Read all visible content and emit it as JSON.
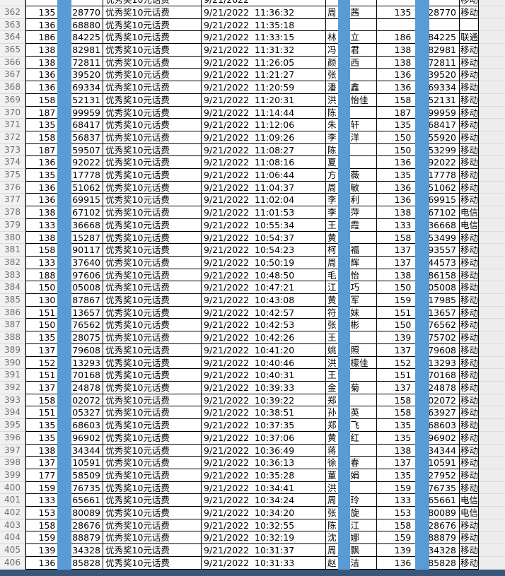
{
  "sheet": {
    "prize_label": "优秀奖10元话费",
    "date": "9/21/2022"
  },
  "colors": {
    "redaction_bar": "#5b9bd5",
    "page_break_bar": "#38587b",
    "row_header_bg": "#f1f1f1",
    "outside_area_bg": "#ededed"
  },
  "carriers_seen": [
    "移动",
    "联通",
    "电信"
  ],
  "rows": [
    {
      "row": "",
      "partial": true,
      "phone_a_prefix": "",
      "phone_a_suffix": "",
      "time": "",
      "name_first": "",
      "name_rest": "",
      "phone_b_prefix": "",
      "phone_b_suffix": "",
      "carrier": "移动"
    },
    {
      "row": "362",
      "phone_a_prefix": "135",
      "phone_a_suffix": "28770",
      "time": "11:36:32",
      "name_first": "周",
      "name_rest": "茜",
      "phone_b_prefix": "135",
      "phone_b_suffix": "28770",
      "carrier": "移动"
    },
    {
      "row": "363",
      "phone_a_prefix": "136",
      "phone_a_suffix": "68880",
      "time": "11:35:18",
      "name_first": "",
      "name_rest": "",
      "phone_b_prefix": "",
      "phone_b_suffix": "",
      "carrier": ""
    },
    {
      "row": "364",
      "phone_a_prefix": "186",
      "phone_a_suffix": "84225",
      "time": "11:33:15",
      "name_first": "林",
      "name_rest": "立",
      "phone_b_prefix": "186",
      "phone_b_suffix": "84225",
      "carrier": "联通"
    },
    {
      "row": "365",
      "phone_a_prefix": "138",
      "phone_a_suffix": "82981",
      "time": "11:31:32",
      "name_first": "冯",
      "name_rest": "君",
      "phone_b_prefix": "138",
      "phone_b_suffix": "82981",
      "carrier": "移动"
    },
    {
      "row": "366",
      "phone_a_prefix": "138",
      "phone_a_suffix": "72811",
      "time": "11:26:05",
      "name_first": "颜",
      "name_rest": "西",
      "phone_b_prefix": "138",
      "phone_b_suffix": "72811",
      "carrier": "移动"
    },
    {
      "row": "367",
      "phone_a_prefix": "136",
      "phone_a_suffix": "39520",
      "time": "11:21:27",
      "name_first": "张",
      "name_rest": "",
      "phone_b_prefix": "136",
      "phone_b_suffix": "39520",
      "carrier": "移动"
    },
    {
      "row": "368",
      "phone_a_prefix": "136",
      "phone_a_suffix": "69334",
      "time": "11:20:59",
      "name_first": "潘",
      "name_rest": "鑫",
      "phone_b_prefix": "136",
      "phone_b_suffix": "69334",
      "carrier": "移动"
    },
    {
      "row": "369",
      "phone_a_prefix": "158",
      "phone_a_suffix": "52131",
      "time": "11:20:31",
      "name_first": "洪",
      "name_rest": "怡佳",
      "phone_b_prefix": "158",
      "phone_b_suffix": "52131",
      "carrier": "移动"
    },
    {
      "row": "370",
      "phone_a_prefix": "187",
      "phone_a_suffix": "99959",
      "time": "11:14:44",
      "name_first": "陈",
      "name_rest": "",
      "phone_b_prefix": "187",
      "phone_b_suffix": "99959",
      "carrier": "移动"
    },
    {
      "row": "371",
      "phone_a_prefix": "135",
      "phone_a_suffix": "68417",
      "time": "11:12:06",
      "name_first": "朱",
      "name_rest": "轩",
      "phone_b_prefix": "135",
      "phone_b_suffix": "68417",
      "carrier": "移动"
    },
    {
      "row": "372",
      "phone_a_prefix": "158",
      "phone_a_suffix": "56837",
      "time": "11:09:26",
      "name_first": "李",
      "name_rest": "洋",
      "phone_b_prefix": "150",
      "phone_b_suffix": "55920",
      "carrier": "移动"
    },
    {
      "row": "373",
      "phone_a_prefix": "187",
      "phone_a_suffix": "59507",
      "time": "11:08:27",
      "name_first": "陈",
      "name_rest": "",
      "phone_b_prefix": "150",
      "phone_b_suffix": "53299",
      "carrier": "移动"
    },
    {
      "row": "374",
      "phone_a_prefix": "136",
      "phone_a_suffix": "92022",
      "time": "11:08:16",
      "name_first": "夏",
      "name_rest": "",
      "phone_b_prefix": "136",
      "phone_b_suffix": "92022",
      "carrier": "移动"
    },
    {
      "row": "375",
      "phone_a_prefix": "135",
      "phone_a_suffix": "17778",
      "time": "11:06:44",
      "name_first": "方",
      "name_rest": "薇",
      "phone_b_prefix": "135",
      "phone_b_suffix": "17778",
      "carrier": "移动"
    },
    {
      "row": "376",
      "phone_a_prefix": "136",
      "phone_a_suffix": "51062",
      "time": "11:04:37",
      "name_first": "周",
      "name_rest": "敏",
      "phone_b_prefix": "136",
      "phone_b_suffix": "51062",
      "carrier": "移动"
    },
    {
      "row": "377",
      "phone_a_prefix": "136",
      "phone_a_suffix": "69915",
      "time": "11:02:04",
      "name_first": "李",
      "name_rest": "利",
      "phone_b_prefix": "136",
      "phone_b_suffix": "69915",
      "carrier": "移动"
    },
    {
      "row": "378",
      "phone_a_prefix": "138",
      "phone_a_suffix": "67102",
      "time": "11:01:53",
      "name_first": "李",
      "name_rest": "萍",
      "phone_b_prefix": "138",
      "phone_b_suffix": "67102",
      "carrier": "电信"
    },
    {
      "row": "379",
      "phone_a_prefix": "133",
      "phone_a_suffix": "36668",
      "time": "10:55:34",
      "name_first": "王",
      "name_rest": "霞",
      "phone_b_prefix": "133",
      "phone_b_suffix": "36668",
      "carrier": "电信"
    },
    {
      "row": "380",
      "phone_a_prefix": "138",
      "phone_a_suffix": "15287",
      "time": "10:54:37",
      "name_first": "黄",
      "name_rest": "",
      "phone_b_prefix": "158",
      "phone_b_suffix": "53499",
      "carrier": "移动"
    },
    {
      "row": "381",
      "phone_a_prefix": "158",
      "phone_a_suffix": "90117",
      "time": "10:54:23",
      "name_first": "柯",
      "name_rest": "福",
      "phone_b_prefix": "137",
      "phone_b_suffix": "93557",
      "carrier": "移动"
    },
    {
      "row": "382",
      "phone_a_prefix": "133",
      "phone_a_suffix": "37640",
      "time": "10:50:19",
      "name_first": "周",
      "name_rest": "辉",
      "phone_b_prefix": "137",
      "phone_b_suffix": "44573",
      "carrier": "移动"
    },
    {
      "row": "383",
      "phone_a_prefix": "188",
      "phone_a_suffix": "97606",
      "time": "10:48:50",
      "name_first": "毛",
      "name_rest": "怡",
      "phone_b_prefix": "138",
      "phone_b_suffix": "86158",
      "carrier": "移动"
    },
    {
      "row": "384",
      "phone_a_prefix": "150",
      "phone_a_suffix": "05008",
      "time": "10:47:21",
      "name_first": "江",
      "name_rest": "巧",
      "phone_b_prefix": "150",
      "phone_b_suffix": "05008",
      "carrier": "移动"
    },
    {
      "row": "385",
      "phone_a_prefix": "130",
      "phone_a_suffix": "87867",
      "time": "10:43:08",
      "name_first": "黄",
      "name_rest": "军",
      "phone_b_prefix": "159",
      "phone_b_suffix": "17985",
      "carrier": "移动"
    },
    {
      "row": "386",
      "phone_a_prefix": "151",
      "phone_a_suffix": "13657",
      "time": "10:42:57",
      "name_first": "符",
      "name_rest": "妹",
      "phone_b_prefix": "151",
      "phone_b_suffix": "13657",
      "carrier": "移动"
    },
    {
      "row": "387",
      "phone_a_prefix": "150",
      "phone_a_suffix": "76562",
      "time": "10:42:53",
      "name_first": "张",
      "name_rest": "彬",
      "phone_b_prefix": "150",
      "phone_b_suffix": "76562",
      "carrier": "移动"
    },
    {
      "row": "388",
      "phone_a_prefix": "135",
      "phone_a_suffix": "28075",
      "time": "10:42:26",
      "name_first": "王",
      "name_rest": "",
      "phone_b_prefix": "139",
      "phone_b_suffix": "75702",
      "carrier": "移动"
    },
    {
      "row": "389",
      "phone_a_prefix": "137",
      "phone_a_suffix": "79608",
      "time": "10:41:20",
      "name_first": "姚",
      "name_rest": "照",
      "phone_b_prefix": "137",
      "phone_b_suffix": "79608",
      "carrier": "移动"
    },
    {
      "row": "390",
      "phone_a_prefix": "152",
      "phone_a_suffix": "13293",
      "time": "10:40:46",
      "name_first": "洪",
      "name_rest": "檬佳",
      "phone_b_prefix": "152",
      "phone_b_suffix": "13293",
      "carrier": "移动"
    },
    {
      "row": "391",
      "phone_a_prefix": "151",
      "phone_a_suffix": "70168",
      "time": "10:40:31",
      "name_first": "王",
      "name_rest": "",
      "phone_b_prefix": "151",
      "phone_b_suffix": "70168",
      "carrier": "移动"
    },
    {
      "row": "392",
      "phone_a_prefix": "137",
      "phone_a_suffix": "24878",
      "time": "10:39:33",
      "name_first": "金",
      "name_rest": "菊",
      "phone_b_prefix": "137",
      "phone_b_suffix": "24878",
      "carrier": "移动"
    },
    {
      "row": "393",
      "phone_a_prefix": "158",
      "phone_a_suffix": "02072",
      "time": "10:39:22",
      "name_first": "郑",
      "name_rest": "",
      "phone_b_prefix": "158",
      "phone_b_suffix": "02072",
      "carrier": "移动"
    },
    {
      "row": "394",
      "phone_a_prefix": "151",
      "phone_a_suffix": "05327",
      "time": "10:38:51",
      "name_first": "孙",
      "name_rest": "英",
      "phone_b_prefix": "158",
      "phone_b_suffix": "63927",
      "carrier": "移动"
    },
    {
      "row": "395",
      "phone_a_prefix": "135",
      "phone_a_suffix": "68603",
      "time": "10:37:35",
      "name_first": "郑",
      "name_rest": "飞",
      "phone_b_prefix": "135",
      "phone_b_suffix": "68603",
      "carrier": "移动"
    },
    {
      "row": "396",
      "phone_a_prefix": "135",
      "phone_a_suffix": "96902",
      "time": "10:37:06",
      "name_first": "黄",
      "name_rest": "红",
      "phone_b_prefix": "135",
      "phone_b_suffix": "96902",
      "carrier": "移动"
    },
    {
      "row": "397",
      "phone_a_prefix": "138",
      "phone_a_suffix": "34344",
      "time": "10:36:49",
      "name_first": "蒋",
      "name_rest": "",
      "phone_b_prefix": "138",
      "phone_b_suffix": "34344",
      "carrier": "移动"
    },
    {
      "row": "398",
      "phone_a_prefix": "137",
      "phone_a_suffix": "10591",
      "time": "10:36:13",
      "name_first": "徐",
      "name_rest": "春",
      "phone_b_prefix": "137",
      "phone_b_suffix": "10591",
      "carrier": "移动"
    },
    {
      "row": "399",
      "phone_a_prefix": "177",
      "phone_a_suffix": "58509",
      "time": "10:35:28",
      "name_first": "董",
      "name_rest": "娟",
      "phone_b_prefix": "135",
      "phone_b_suffix": "27952",
      "carrier": "移动"
    },
    {
      "row": "400",
      "phone_a_prefix": "159",
      "phone_a_suffix": "76735",
      "time": "10:34:41",
      "name_first": "洪",
      "name_rest": "",
      "phone_b_prefix": "159",
      "phone_b_suffix": "76735",
      "carrier": "移动"
    },
    {
      "row": "401",
      "phone_a_prefix": "133",
      "phone_a_suffix": "65661",
      "time": "10:34:24",
      "name_first": "周",
      "name_rest": "玲",
      "phone_b_prefix": "133",
      "phone_b_suffix": "65661",
      "carrier": "电信"
    },
    {
      "row": "402",
      "phone_a_prefix": "153",
      "phone_a_suffix": "80089",
      "time": "10:34:20",
      "name_first": "张",
      "name_rest": "旋",
      "phone_b_prefix": "153",
      "phone_b_suffix": "80089",
      "carrier": "电信"
    },
    {
      "row": "403",
      "phone_a_prefix": "158",
      "phone_a_suffix": "28676",
      "time": "10:32:55",
      "name_first": "陈",
      "name_rest": "江",
      "phone_b_prefix": "158",
      "phone_b_suffix": "28676",
      "carrier": "移动"
    },
    {
      "row": "404",
      "phone_a_prefix": "159",
      "phone_a_suffix": "88879",
      "time": "10:32:19",
      "name_first": "沈",
      "name_rest": "娜",
      "phone_b_prefix": "159",
      "phone_b_suffix": "88879",
      "carrier": "移动"
    },
    {
      "row": "405",
      "phone_a_prefix": "139",
      "phone_a_suffix": "34328",
      "time": "10:31:37",
      "name_first": "周",
      "name_rest": "飘",
      "phone_b_prefix": "139",
      "phone_b_suffix": "34328",
      "carrier": "移动"
    },
    {
      "row": "406",
      "phone_a_prefix": "136",
      "phone_a_suffix": "85828",
      "time": "10:31:33",
      "name_first": "赵",
      "name_rest": "洁",
      "phone_b_prefix": "136",
      "phone_b_suffix": "85828",
      "carrier": "移动"
    }
  ]
}
